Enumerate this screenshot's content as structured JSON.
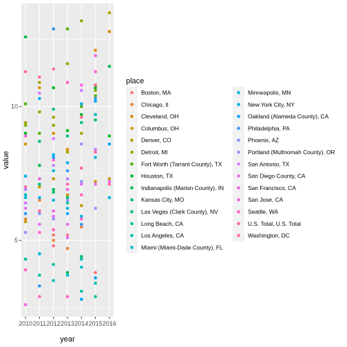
{
  "chart_data": {
    "type": "scatter",
    "xlabel": "year",
    "ylabel": "value",
    "x_ticks": [
      2010,
      2011,
      2012,
      2013,
      2014,
      2015,
      2016
    ],
    "y_ticks": [
      5,
      10
    ],
    "xlim": [
      2009.7,
      2016.3
    ],
    "ylim": [
      2.15,
      13.85
    ],
    "grid": true,
    "legend_title": "place",
    "legend_placement": "right",
    "series": [
      {
        "name": "Boston, MA",
        "color": "#F8766D",
        "points": [
          [
            2012,
            5.2
          ],
          [
            2014,
            4.3
          ],
          [
            2015,
            3.8
          ]
        ]
      },
      {
        "name": "Chicago, Il",
        "color": "#EB8335",
        "points": [
          [
            2010,
            5.8
          ],
          [
            2011,
            6.5
          ],
          [
            2012,
            5.0
          ],
          [
            2013,
            4.7
          ],
          [
            2014,
            5.5
          ]
        ]
      },
      {
        "name": "Cleveland, OH",
        "color": "#DA8F00",
        "points": [
          [
            2010,
            8.6
          ],
          [
            2011,
            10.7
          ],
          [
            2012,
            9.0
          ],
          [
            2013,
            8.4
          ],
          [
            2014,
            7.7
          ],
          [
            2015,
            12.1
          ],
          [
            2016,
            12.8
          ]
        ]
      },
      {
        "name": "Columbus, OH",
        "color": "#C49A00",
        "points": [
          [
            2010,
            5.7
          ],
          [
            2011,
            7.0
          ],
          [
            2012,
            7.3
          ],
          [
            2013,
            6.7
          ],
          [
            2014,
            6.3
          ],
          [
            2015,
            7.2
          ],
          [
            2016,
            7.3
          ]
        ]
      },
      {
        "name": "Denver, CO",
        "color": "#A9A400",
        "points": [
          [
            2010,
            9.4
          ],
          [
            2011,
            10.9
          ],
          [
            2012,
            9.6
          ],
          [
            2013,
            8.3
          ],
          [
            2014,
            9.0
          ],
          [
            2015,
            10.8
          ],
          [
            2016,
            13.5
          ]
        ]
      },
      {
        "name": "Detroit, MI",
        "color": "#87AC00",
        "points": [
          [
            2010,
            9.3
          ],
          [
            2011,
            9.8
          ],
          [
            2012,
            9.3
          ],
          [
            2013,
            11.6
          ],
          [
            2014,
            13.2
          ],
          [
            2015,
            10.6
          ]
        ]
      },
      {
        "name": "Fort Worth (Tarrant County), TX",
        "color": "#53B400",
        "points": [
          [
            2010,
            10.1
          ],
          [
            2011,
            9.0
          ],
          [
            2012,
            12.9
          ],
          [
            2013,
            12.9
          ],
          [
            2014,
            10.0
          ],
          [
            2015,
            10.4
          ]
        ]
      },
      {
        "name": "Houston, TX",
        "color": "#00B81F",
        "points": [
          [
            2010,
            9.0
          ],
          [
            2011,
            7.3
          ],
          [
            2012,
            10.7
          ],
          [
            2013,
            9.1
          ],
          [
            2014,
            9.7
          ],
          [
            2015,
            10.7
          ],
          [
            2016,
            8.9
          ]
        ]
      },
      {
        "name": "Indianapolis (Marion County), IN",
        "color": "#00BB4B",
        "points": [
          [
            2010,
            12.6
          ],
          [
            2011,
            7.8
          ],
          [
            2012,
            6.9
          ],
          [
            2013,
            3.8
          ],
          [
            2014,
            5.9
          ],
          [
            2015,
            10.8
          ],
          [
            2016,
            11.5
          ]
        ]
      },
      {
        "name": "Kansas City, MO",
        "color": "#00BE6C",
        "points": [
          [
            2010,
            6.7
          ],
          [
            2011,
            8.7
          ],
          [
            2012,
            6.8
          ],
          [
            2013,
            6.6
          ],
          [
            2014,
            4.4
          ],
          [
            2015,
            9.5
          ]
        ]
      },
      {
        "name": "Las Vegas (Clark County), NV",
        "color": "#00C087",
        "points": [
          [
            2011,
            7.1
          ],
          [
            2012,
            9.9
          ],
          [
            2013,
            8.9
          ],
          [
            2014,
            9.4
          ]
        ]
      },
      {
        "name": "Long Beach, CA",
        "color": "#00C1A0",
        "points": [
          [
            2010,
            4.3
          ],
          [
            2011,
            3.7
          ],
          [
            2012,
            4.1
          ],
          [
            2013,
            6.4
          ],
          [
            2014,
            3.1
          ],
          [
            2015,
            2.9
          ]
        ]
      },
      {
        "name": "Los Angeles, CA",
        "color": "#00BFB7",
        "points": [
          [
            2010,
            6.0
          ],
          [
            2011,
            4.5
          ],
          [
            2012,
            3.5
          ],
          [
            2013,
            6.9
          ],
          [
            2014,
            4.3
          ],
          [
            2015,
            3.4
          ]
        ]
      },
      {
        "name": "Miami (Miami-Dade County), FL",
        "color": "#00BBCC",
        "points": [
          [
            2010,
            6.7
          ],
          [
            2011,
            3.3
          ],
          [
            2012,
            7.6
          ],
          [
            2013,
            3.7
          ],
          [
            2014,
            4.0
          ],
          [
            2015,
            9.7
          ]
        ]
      },
      {
        "name": "Minneapolis, MN",
        "color": "#00B6DD",
        "points": [
          [
            2010,
            6.6
          ],
          [
            2011,
            4.5
          ],
          [
            2012,
            6.5
          ],
          [
            2013,
            6.2
          ],
          [
            2014,
            5.9
          ],
          [
            2015,
            8.1
          ],
          [
            2016,
            6.6
          ]
        ]
      },
      {
        "name": "New York City, NY",
        "color": "#00AEEC",
        "points": [
          [
            2010,
            7.4
          ],
          [
            2011,
            10.3
          ],
          [
            2012,
            8.2
          ],
          [
            2013,
            7.9
          ],
          [
            2014,
            10.1
          ],
          [
            2015,
            10.2
          ]
        ]
      },
      {
        "name": "Oakland (Alameda County), CA",
        "color": "#00A4F9",
        "points": [
          [
            2010,
            6.4
          ],
          [
            2011,
            6.6
          ],
          [
            2012,
            8.1
          ],
          [
            2013,
            6.0
          ],
          [
            2014,
            2.8
          ],
          [
            2015,
            3.6
          ],
          [
            2016,
            8.6
          ]
        ]
      },
      {
        "name": "Philadelphia, PA",
        "color": "#2F97FF",
        "points": [
          [
            2010,
            6.0
          ],
          [
            2011,
            3.3
          ],
          [
            2012,
            12.9
          ],
          [
            2013,
            7.6
          ],
          [
            2014,
            5.6
          ],
          [
            2015,
            10.3
          ]
        ]
      },
      {
        "name": "Phoenix, AZ",
        "color": "#8B93FF",
        "points": [
          [
            2010,
            5.3
          ],
          [
            2011,
            6.0
          ],
          [
            2012,
            5.8
          ],
          [
            2013,
            6.5
          ],
          [
            2014,
            7.2
          ],
          [
            2015,
            6.2
          ]
        ]
      },
      {
        "name": "Portland (Multnomah County), OR",
        "color": "#B584FF",
        "points": [
          [
            2010,
            6.9
          ],
          [
            2011,
            7.3
          ],
          [
            2012,
            7.8
          ],
          [
            2013,
            7.3
          ],
          [
            2014,
            8.6
          ],
          [
            2015,
            8.4
          ]
        ]
      },
      {
        "name": "San Antonio, TX",
        "color": "#D377FF",
        "points": [
          [
            2010,
            6.4
          ],
          [
            2011,
            10.5
          ],
          [
            2012,
            8.8
          ],
          [
            2013,
            5.1
          ],
          [
            2014,
            10.6
          ]
        ]
      },
      {
        "name": "San Diego County, CA",
        "color": "#E76BF3",
        "points": [
          [
            2010,
            6.2
          ],
          [
            2011,
            5.6
          ],
          [
            2012,
            5.9
          ],
          [
            2013,
            5.6
          ],
          [
            2014,
            7.1
          ],
          [
            2015,
            7.1
          ],
          [
            2016,
            7.2
          ]
        ]
      },
      {
        "name": "San Francisco, CA",
        "color": "#F564E3",
        "points": [
          [
            2010,
            2.6
          ],
          [
            2011,
            7.3
          ],
          [
            2012,
            6.1
          ],
          [
            2013,
            6.9
          ],
          [
            2014,
            10.8
          ],
          [
            2015,
            11.9
          ]
        ]
      },
      {
        "name": "San Jose, CA",
        "color": "#FD61D1",
        "points": [
          [
            2010,
            8.9
          ],
          [
            2011,
            5.3
          ],
          [
            2012,
            8.0
          ],
          [
            2013,
            2.9
          ],
          [
            2014,
            5.8
          ],
          [
            2015,
            11.3
          ]
        ]
      },
      {
        "name": "Seattle, WA",
        "color": "#FF62BC",
        "points": [
          [
            2010,
            3.9
          ],
          [
            2011,
            2.9
          ],
          [
            2012,
            5.4
          ],
          [
            2013,
            10.9
          ],
          [
            2014,
            6.7
          ]
        ]
      },
      {
        "name": "U.S. Total, U.S. Total",
        "color": "#FF67A4",
        "points": [
          [
            2010,
            7.0
          ],
          [
            2011,
            11.1
          ],
          [
            2012,
            11.4
          ],
          [
            2013,
            7.1
          ],
          [
            2014,
            7.7
          ],
          [
            2015,
            8.3
          ],
          [
            2016,
            7.1
          ]
        ]
      },
      {
        "name": "Washington, DC",
        "color": "#FF6C91",
        "points": [
          [
            2010,
            11.3
          ],
          [
            2011,
            6.1
          ],
          [
            2012,
            4.8
          ],
          [
            2013,
            5.2
          ],
          [
            2014,
            9.6
          ],
          [
            2015,
            10.8
          ]
        ]
      }
    ]
  }
}
